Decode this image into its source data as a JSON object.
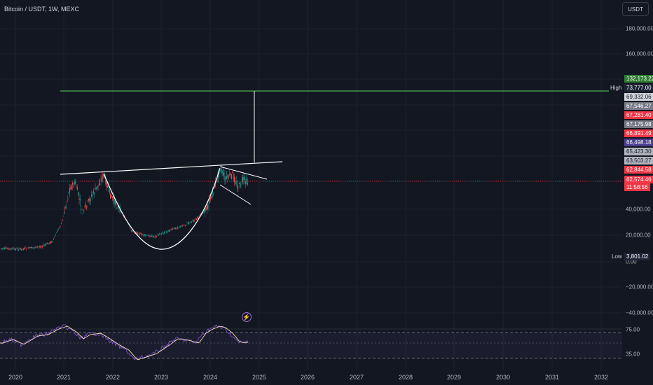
{
  "header": {
    "symbol_title": "Bitcoin / USDT, 1W, MEXC",
    "currency": "USDT"
  },
  "y_ticks": [
    {
      "label": "180,000.00",
      "value": 180000
    },
    {
      "label": "160,000.00",
      "value": 160000
    },
    {
      "label": "40,000.00",
      "value": 40000
    },
    {
      "label": "20,000.00",
      "value": 20000
    },
    {
      "label": "0.00",
      "value": 0
    },
    {
      "label": "−20,000.00",
      "value": -20000
    },
    {
      "label": "−40,000.00",
      "value": -40000
    }
  ],
  "rsi_ticks": [
    {
      "label": "75.00",
      "value": 75
    },
    {
      "label": "35.00",
      "value": 35
    }
  ],
  "x_ticks": [
    {
      "label": "2020",
      "year": 2020
    },
    {
      "label": "2021",
      "year": 2021
    },
    {
      "label": "2022",
      "year": 2022
    },
    {
      "label": "2023",
      "year": 2023
    },
    {
      "label": "2024",
      "year": 2024
    },
    {
      "label": "2025",
      "year": 2025
    },
    {
      "label": "2026",
      "year": 2026
    },
    {
      "label": "2027",
      "year": 2027
    },
    {
      "label": "2028",
      "year": 2028
    },
    {
      "label": "2029",
      "year": 2029
    },
    {
      "label": "2030",
      "year": 2030
    },
    {
      "label": "2031",
      "year": 2031
    },
    {
      "label": "2032",
      "year": 2032
    }
  ],
  "price_badges": [
    {
      "text": "132,173.22",
      "color": "#2e7d32",
      "text_color": "#ffffff"
    },
    {
      "text": "73,777.00",
      "color": "#1e2436",
      "text_color": "#ffffff"
    },
    {
      "text": "69,332.06",
      "color": "#d1d4dc",
      "text_color": "#131722"
    },
    {
      "text": "67,546.27",
      "color": "#787b86",
      "text_color": "#ffffff"
    },
    {
      "text": "67,281.40",
      "color": "#f23645",
      "text_color": "#ffffff"
    },
    {
      "text": "67,175.98",
      "color": "#787b86",
      "text_color": "#ffffff"
    },
    {
      "text": "66,891.49",
      "color": "#f23645",
      "text_color": "#ffffff"
    },
    {
      "text": "66,498.18",
      "color": "#4a3d8f",
      "text_color": "#ffffff"
    },
    {
      "text": "65,423.30",
      "color": "#b2b5be",
      "text_color": "#131722"
    },
    {
      "text": "63,503.27",
      "color": "#b2b5be",
      "text_color": "#131722"
    },
    {
      "text": "62,844.58",
      "color": "#f23645",
      "text_color": "#ffffff"
    },
    {
      "text": "62,574.46",
      "color": "#f23645",
      "text_color": "#ffffff"
    },
    {
      "text": "11:58:56",
      "color": "#f23645",
      "text_color": "#ffffff"
    },
    {
      "text": "3,801.02",
      "color": "#1e2436",
      "text_color": "#ffffff"
    }
  ],
  "high_label": "High",
  "low_label": "Low",
  "colors": {
    "background": "#131722",
    "up": "#26a69a",
    "down": "#ef5350",
    "target_line": "#4caf50",
    "drawing": "#ffffff",
    "rsi": "#7e57c2",
    "rsi_ma": "#f5deb3",
    "price_line": "#f23645"
  },
  "icons": {
    "alert": "lightning-icon"
  },
  "alert_glyph": "⚡"
}
